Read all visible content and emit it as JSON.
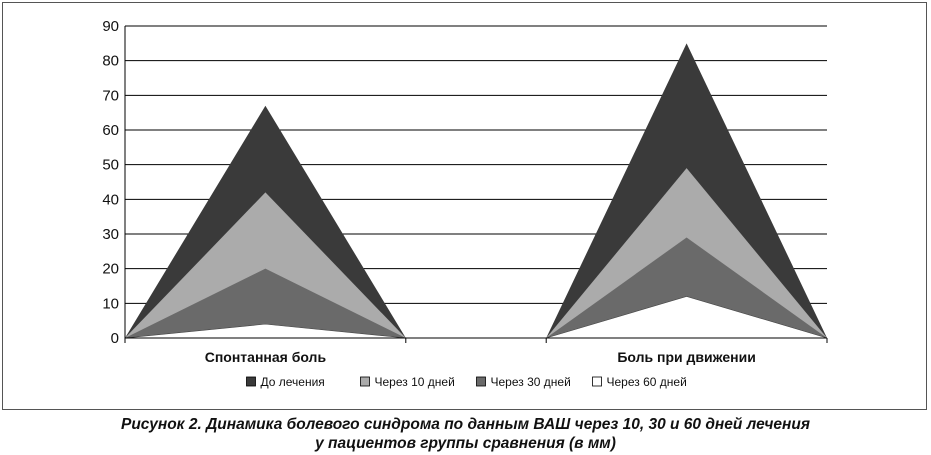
{
  "chart_data": {
    "type": "area",
    "categories": [
      "Спонтанная боль",
      "Боль при движении"
    ],
    "series": [
      {
        "name": "До лечения",
        "values": [
          67,
          85
        ],
        "color": "#3a3a3a"
      },
      {
        "name": "Через 10 дней",
        "values": [
          42,
          49
        ],
        "color": "#ababab"
      },
      {
        "name": "Через 30 дней",
        "values": [
          20,
          29
        ],
        "color": "#6a6a6a"
      },
      {
        "name": "Через 60 дней",
        "values": [
          4,
          12
        ],
        "color": "#ffffff"
      }
    ],
    "y_ticks": [
      "0",
      "10",
      "20",
      "30",
      "40",
      "50",
      "60",
      "70",
      "80",
      "90"
    ],
    "ylim": [
      0,
      90
    ],
    "grid": true,
    "legend_position": "bottom"
  },
  "caption": {
    "line1": "Рисунок 2. Динамика болевого синдрома по данным ВАШ через 10, 30 и 60 дней лечения",
    "line2": "у пациентов группы сравнения (в мм)"
  }
}
